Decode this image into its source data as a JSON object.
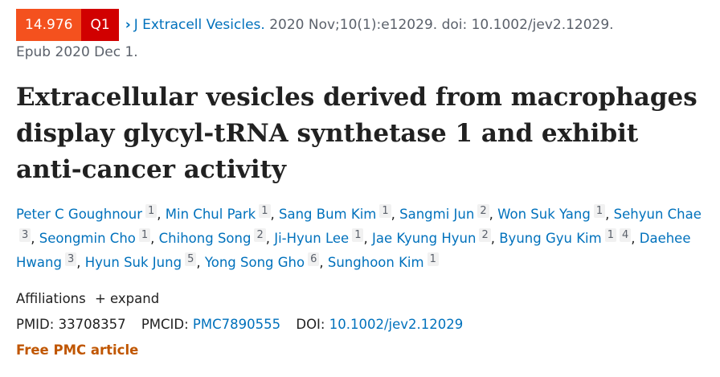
{
  "badges": {
    "impact_factor": "14.976",
    "quartile": "Q1",
    "if_color": "#f4511e",
    "q_color": "#d10000"
  },
  "citation": {
    "journal": "J Extracell Vesicles.",
    "details": "2020 Nov;10(1):e12029. doi: 10.1002/jev2.12029.",
    "epub": "Epub 2020 Dec 1."
  },
  "title": "Extracellular vesicles derived from macrophages display glycyl-tRNA synthetase 1 and exhibit anti-cancer activity",
  "authors": [
    {
      "name": "Peter C Goughnour",
      "affs": [
        "1"
      ]
    },
    {
      "name": "Min Chul Park",
      "affs": [
        "1"
      ]
    },
    {
      "name": "Sang Bum Kim",
      "affs": [
        "1"
      ]
    },
    {
      "name": "Sangmi Jun",
      "affs": [
        "2"
      ]
    },
    {
      "name": "Won Suk Yang",
      "affs": [
        "1"
      ]
    },
    {
      "name": "Sehyun Chae",
      "affs": [
        "3"
      ]
    },
    {
      "name": "Seongmin Cho",
      "affs": [
        "1"
      ]
    },
    {
      "name": "Chihong Song",
      "affs": [
        "2"
      ]
    },
    {
      "name": "Ji-Hyun Lee",
      "affs": [
        "1"
      ]
    },
    {
      "name": "Jae Kyung Hyun",
      "affs": [
        "2"
      ]
    },
    {
      "name": "Byung Gyu Kim",
      "affs": [
        "1",
        "4"
      ]
    },
    {
      "name": "Daehee Hwang",
      "affs": [
        "3"
      ]
    },
    {
      "name": "Hyun Suk Jung",
      "affs": [
        "5"
      ]
    },
    {
      "name": "Yong Song Gho",
      "affs": [
        "6"
      ]
    },
    {
      "name": "Sunghoon Kim",
      "affs": [
        "1"
      ]
    }
  ],
  "affiliations": {
    "label": "Affiliations",
    "expand": "+ expand"
  },
  "ids": {
    "pmid_label": "PMID:",
    "pmid": "33708357",
    "pmcid_label": "PMCID:",
    "pmcid": "PMC7890555",
    "doi_label": "DOI:",
    "doi": "10.1002/jev2.12029"
  },
  "free_label": "Free PMC article"
}
